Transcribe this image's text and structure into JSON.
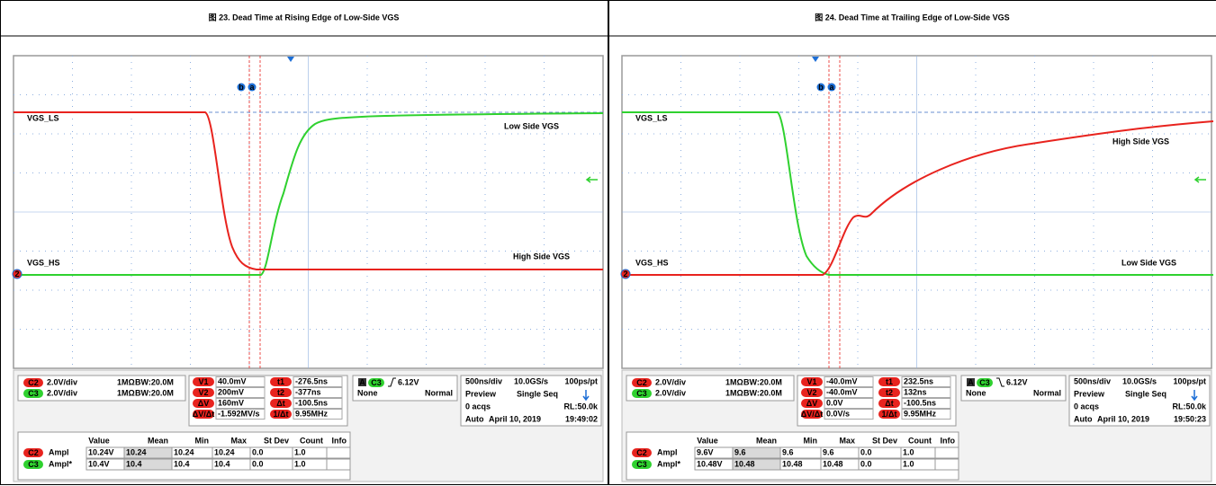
{
  "panels": [
    {
      "title": "图 23. Dead Time at Rising Edge of Low-Side VGS",
      "trace_labels": {
        "c3": "VGS_LS",
        "c2": "VGS_HS"
      },
      "channel_marker": "2",
      "cursor_markers": [
        "b",
        "a"
      ],
      "annotations": {
        "c3": "Low Side VGS",
        "c2": "High Side VGS"
      },
      "channels": [
        {
          "badge": "C2",
          "scale": "2.0V/div",
          "impedance": "1MΩ",
          "bandwidth": "BW:20.0M"
        },
        {
          "badge": "C3",
          "scale": "2.0V/div",
          "impedance": "1MΩ",
          "bandwidth": "BW:20.0M"
        }
      ],
      "cursors_v": [
        {
          "label": "V1",
          "value": "40.0mV"
        },
        {
          "label": "V2",
          "value": "200mV"
        },
        {
          "label": "ΔV",
          "value": "160mV"
        },
        {
          "label": "ΔV/Δt",
          "value": "-1.592MV/s"
        }
      ],
      "cursors_t": [
        {
          "label": "t1",
          "value": "-276.5ns"
        },
        {
          "label": "t2",
          "value": "-377ns"
        },
        {
          "label": "Δt",
          "value": "-100.5ns"
        },
        {
          "label": "1/Δt",
          "value": "9.95MHz"
        }
      ],
      "trigger": {
        "badge": "A",
        "source": "C3",
        "edge": "rising",
        "level": "6.12V",
        "coupling": "None",
        "mode": "Normal"
      },
      "acquisition": {
        "timebase": "500ns/div",
        "sample_rate": "10.0GS/s",
        "resolution": "100ps/pt",
        "preview": "Preview",
        "run_mode": "Single Seq",
        "acqs": "0 acqs",
        "record_length": "RL:50.0k",
        "auto": "Auto",
        "date": "April 10, 2019",
        "time": "19:49:02"
      },
      "measurements": {
        "header": [
          "Value",
          "Mean",
          "Min",
          "Max",
          "St Dev",
          "Count",
          "Info"
        ],
        "rows": [
          {
            "badge": "C2",
            "name": "Ampl",
            "cells": [
              "10.24V",
              "10.24",
              "10.24",
              "10.24",
              "0.0",
              "1.0"
            ]
          },
          {
            "badge": "C3",
            "name": "Ampl*",
            "cells": [
              "10.4V",
              "10.4",
              "10.4",
              "10.4",
              "0.0",
              "1.0"
            ]
          }
        ]
      }
    },
    {
      "title": "图 24. Dead Time at Trailing Edge of Low-Side VGS",
      "trace_labels": {
        "c3": "VGS_LS",
        "c2": "VGS_HS"
      },
      "channel_marker": "2",
      "cursor_markers": [
        "b",
        "a"
      ],
      "annotations": {
        "c3": "Low Side VGS",
        "c2": "High Side VGS"
      },
      "channels": [
        {
          "badge": "C2",
          "scale": "2.0V/div",
          "impedance": "1MΩ",
          "bandwidth": "BW:20.0M"
        },
        {
          "badge": "C3",
          "scale": "2.0V/div",
          "impedance": "1MΩ",
          "bandwidth": "BW:20.0M"
        }
      ],
      "cursors_v": [
        {
          "label": "V1",
          "value": "-40.0mV"
        },
        {
          "label": "V2",
          "value": "-40.0mV"
        },
        {
          "label": "ΔV",
          "value": "0.0V"
        },
        {
          "label": "ΔV/Δt",
          "value": "0.0V/s"
        }
      ],
      "cursors_t": [
        {
          "label": "t1",
          "value": "232.5ns"
        },
        {
          "label": "t2",
          "value": "132ns"
        },
        {
          "label": "Δt",
          "value": "-100.5ns"
        },
        {
          "label": "1/Δt",
          "value": "9.95MHz"
        }
      ],
      "trigger": {
        "badge": "A",
        "source": "C3",
        "edge": "falling",
        "level": "6.12V",
        "coupling": "None",
        "mode": "Normal"
      },
      "acquisition": {
        "timebase": "500ns/div",
        "sample_rate": "10.0GS/s",
        "resolution": "100ps/pt",
        "preview": "Preview",
        "run_mode": "Single Seq",
        "acqs": "0 acqs",
        "record_length": "RL:50.0k",
        "auto": "Auto",
        "date": "April 10, 2019",
        "time": "19:50:23"
      },
      "measurements": {
        "header": [
          "Value",
          "Mean",
          "Min",
          "Max",
          "St Dev",
          "Count",
          "Info"
        ],
        "rows": [
          {
            "badge": "C2",
            "name": "Ampl",
            "cells": [
              "9.6V",
              "9.6",
              "9.6",
              "9.6",
              "0.0",
              "1.0"
            ]
          },
          {
            "badge": "C3",
            "name": "Ampl*",
            "cells": [
              "10.48V",
              "10.48",
              "10.48",
              "10.48",
              "0.0",
              "1.0"
            ]
          }
        ]
      }
    }
  ]
}
